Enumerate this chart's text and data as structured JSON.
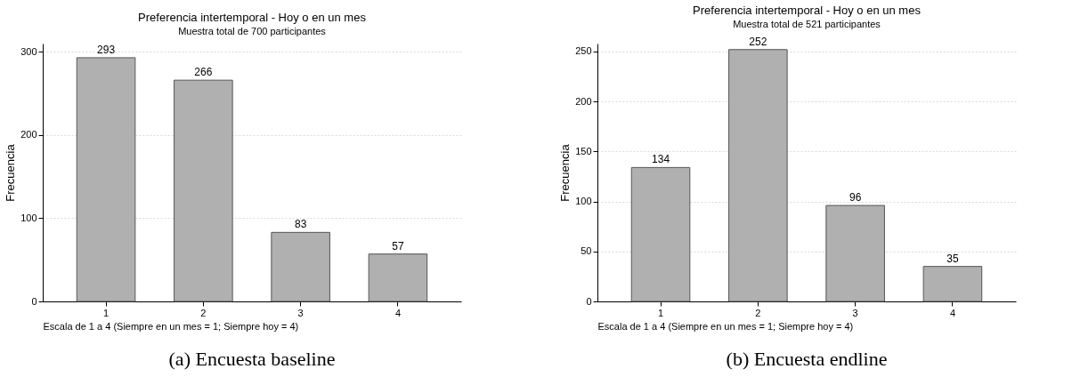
{
  "chart_data": [
    {
      "type": "bar",
      "title": "Preferencia intertemporal - Hoy o en un mes",
      "subtitle": "Muestra total de 700 participantes",
      "xlabel": "Escala de 1 a 4 (Siempre en un mes = 1; Siempre hoy = 4)",
      "ylabel": "Frecuencia",
      "categories": [
        "1",
        "2",
        "3",
        "4"
      ],
      "values": [
        293,
        266,
        83,
        57
      ],
      "color": "#b0b0b0",
      "ylim": [
        0,
        310
      ],
      "yticks": [
        0,
        100,
        200,
        300
      ],
      "grid": "y",
      "data_labels": true,
      "annotations": [
        "(a) Encuesta baseline"
      ]
    },
    {
      "type": "bar",
      "title": "Preferencia intertemporal - Hoy o en un mes",
      "subtitle": "Muestra total de 521 participantes",
      "xlabel": "Escala de 1 a 4 (Siempre en un mes = 1; Siempre hoy = 4)",
      "ylabel": "Frecuencia",
      "categories": [
        "1",
        "2",
        "3",
        "4"
      ],
      "values": [
        134,
        252,
        96,
        35
      ],
      "color": "#b0b0b0",
      "ylim": [
        0,
        258
      ],
      "yticks": [
        0,
        50,
        100,
        150,
        200,
        250
      ],
      "grid": "y",
      "data_labels": true,
      "annotations": [
        "(b) Encuesta endline"
      ]
    }
  ]
}
